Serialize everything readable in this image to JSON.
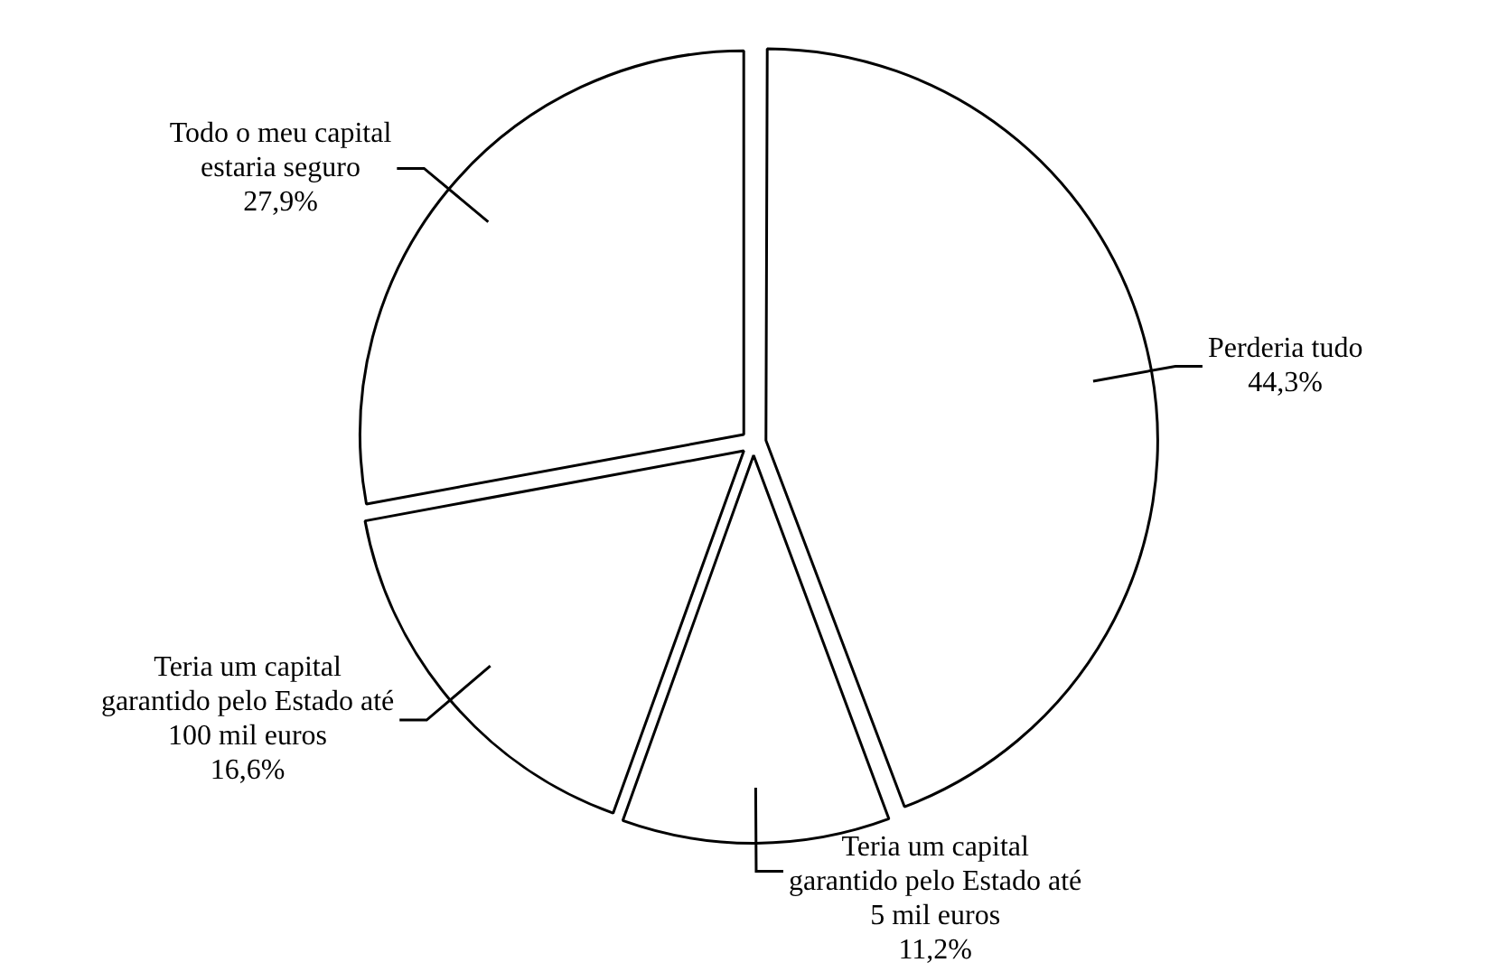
{
  "chart_data": {
    "type": "pie",
    "categories": [
      "Perderia tudo",
      "Teria um capital garantido pelo Estado até 5 mil euros",
      "Teria um capital garantido pelo Estado até 100 mil euros",
      "Todo o meu capital estaria seguro"
    ],
    "values": [
      44.3,
      11.2,
      16.6,
      27.9
    ],
    "colors": [
      "#ffffff",
      "#ffffff",
      "#ffffff",
      "#ffffff"
    ],
    "value_labels": [
      "44,3%",
      "11,2%",
      "16,6%",
      "27,9%"
    ],
    "legend": false
  }
}
